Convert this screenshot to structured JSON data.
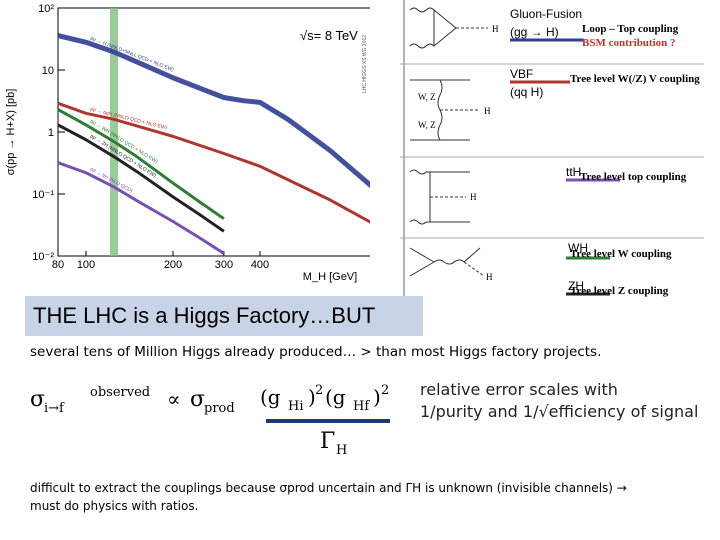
{
  "chart_data": {
    "type": "line",
    "title": "",
    "energy_label": "√s= 8 TeV",
    "xlabel": "M_H [GeV]",
    "ylabel": "σ(pp → H+X) [pb]",
    "xscale": "log",
    "yscale": "log",
    "xlim": [
      80,
      1000
    ],
    "ylim": [
      0.01,
      100
    ],
    "x_tick_labels": [
      "80",
      "100",
      "200",
      "300",
      "400"
    ],
    "y_tick_labels": [
      "10²",
      "10",
      "1",
      "10⁻¹",
      "10⁻²"
    ],
    "highlight_mass": 125,
    "series": [
      {
        "name": "pp → H (NNLO+NNLL QCD + NLO EW)",
        "color": "#2f3d93",
        "x": [
          80,
          100,
          125,
          150,
          200,
          250,
          300,
          350,
          400,
          500,
          700,
          1000
        ],
        "values": [
          36,
          28,
          19.5,
          13.5,
          7.5,
          5.0,
          3.6,
          3.2,
          3.0,
          1.6,
          0.5,
          0.12
        ]
      },
      {
        "name": "pp → qqH (NNLO QCD + NLO EW)",
        "color": "#b0352d",
        "x": [
          80,
          100,
          125,
          150,
          200,
          300,
          400,
          500,
          700,
          1000
        ],
        "values": [
          2.9,
          2.0,
          1.6,
          1.25,
          0.85,
          0.45,
          0.28,
          0.17,
          0.08,
          0.032
        ]
      },
      {
        "name": "pp → WH (NNLO QCD + NLO EW)",
        "color": "#2e7d32",
        "x": [
          80,
          100,
          125,
          150,
          200,
          250,
          300
        ],
        "values": [
          2.3,
          1.3,
          0.7,
          0.4,
          0.15,
          0.072,
          0.04
        ]
      },
      {
        "name": "pp → ZH (NNLO QCD + NLO EW)",
        "color": "#222222",
        "x": [
          80,
          100,
          125,
          150,
          200,
          250,
          300
        ],
        "values": [
          1.3,
          0.75,
          0.4,
          0.23,
          0.09,
          0.045,
          0.025
        ]
      },
      {
        "name": "pp → ttH (NLO QCD)",
        "color": "#7b4fb5",
        "x": [
          80,
          100,
          125,
          150,
          200,
          250,
          300
        ],
        "values": [
          0.32,
          0.22,
          0.13,
          0.078,
          0.036,
          0.019,
          0.011
        ]
      }
    ],
    "watermark": "LHC HIGGS XS WG 2012"
  },
  "diagrams": [
    {
      "process": "Gluon-Fusion",
      "sub": "(gg → H)",
      "coupling": "Loop – Top coupling",
      "coupling2": "BSM contribution ?"
    },
    {
      "process": "VBF",
      "sub": "(qq H)",
      "coupling": "Tree level W(/Z) V coupling"
    },
    {
      "process": "ttH",
      "coupling": "Tree level top coupling"
    },
    {
      "process": "WH",
      "coupling": "Tree level W coupling"
    },
    {
      "process": "ZH",
      "coupling": "Tree level Z coupling"
    }
  ],
  "colors": {
    "gluon": "#2f3d93",
    "vbf": "#b0352d",
    "tth": "#7b4fb5",
    "wh": "#2e7d32",
    "zh": "#222222",
    "coupling2": "#d0302a"
  },
  "banner": "THE LHC is a Higgs Factory…BUT",
  "subtitle": "several tens of Million Higgs already produced… > than most Higgs factory projects.",
  "formula": {
    "sigma_if": "σ",
    "if_sub": "i→f",
    "observed": "observed",
    "propto": "∝",
    "sigma_prod": "σ",
    "prod_sub": "prod",
    "g1": "(g",
    "g1_sub": "Hi",
    "g1_close": ")",
    "sq1": "2",
    "g2": "(g",
    "g2_sub": "Hf",
    "g2_close": ")",
    "sq2": "2",
    "gamma": "Γ",
    "gamma_sub": "H"
  },
  "error_text": {
    "line1": "relative error scales with",
    "line2": "1/purity and 1/√efficiency of signal"
  },
  "footer": {
    "line1": "difficult to extract the couplings because σprod uncertain  and ΓH  is unknown  (invisible channels) →",
    "line2": "must do physics with ratios."
  }
}
